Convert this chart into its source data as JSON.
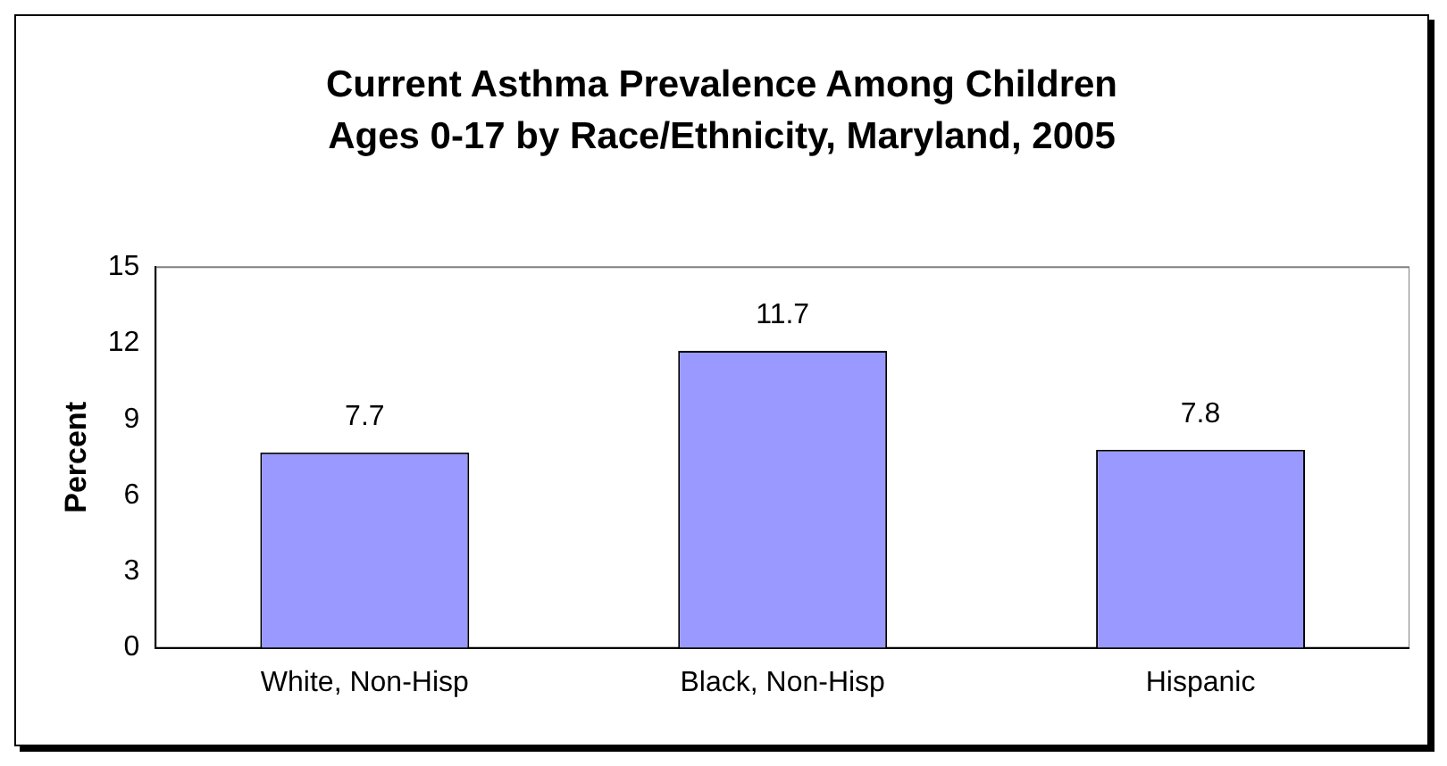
{
  "chart_data": {
    "type": "bar",
    "title": "Current Asthma Prevalence Among Children Ages 0-17 by Race/Ethnicity, Maryland, 2005",
    "ylabel": "Percent",
    "categories": [
      "White, Non-Hisp",
      "Black, Non-Hisp",
      "Hispanic"
    ],
    "values": [
      7.7,
      11.7,
      7.8
    ],
    "color": "#9999ff",
    "ylim": [
      0,
      15
    ],
    "yticks": [
      0,
      3,
      6,
      9,
      12,
      15
    ],
    "grid": false,
    "legend": false,
    "data_labels": true
  }
}
